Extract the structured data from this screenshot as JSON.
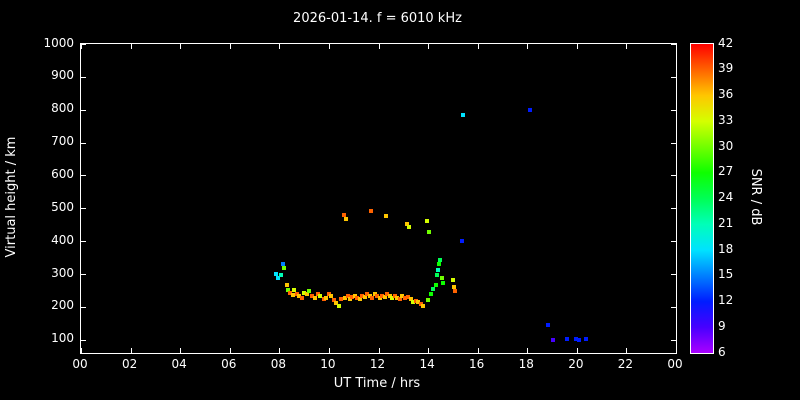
{
  "colors": {
    "background": "#000000",
    "foreground": "#ffffff"
  },
  "chart_data": {
    "type": "scatter",
    "title": "2026-01-14. f = 6010 kHz",
    "xlabel": "UT Time / hrs",
    "ylabel": "Virtual height / km",
    "xlim": [
      0,
      24
    ],
    "ylim": [
      60,
      1000
    ],
    "grid": false,
    "x_tick_values": [
      0,
      2,
      4,
      6,
      8,
      10,
      12,
      14,
      16,
      18,
      20,
      22,
      24
    ],
    "x_tick_labels": [
      "00",
      "02",
      "04",
      "06",
      "08",
      "10",
      "12",
      "14",
      "16",
      "18",
      "20",
      "22",
      "00"
    ],
    "y_tick_values": [
      100,
      200,
      300,
      400,
      500,
      600,
      700,
      800,
      900,
      1000
    ],
    "y_tick_labels": [
      "100",
      "200",
      "300",
      "400",
      "500",
      "600",
      "700",
      "800",
      "900",
      "1000"
    ],
    "colorbar": {
      "label": "SNR / dB",
      "min": 6,
      "max": 42,
      "tick_values": [
        6,
        9,
        12,
        15,
        18,
        21,
        24,
        27,
        30,
        33,
        36,
        39,
        42
      ],
      "tick_labels": [
        "6",
        "9",
        "12",
        "15",
        "18",
        "21",
        "24",
        "27",
        "30",
        "33",
        "36",
        "39",
        "42"
      ]
    },
    "series_note": "points are [ut_time_hrs, virtual_height_km, snr_db]",
    "points": [
      [
        7.85,
        300,
        18
      ],
      [
        7.95,
        288,
        18
      ],
      [
        8.05,
        296,
        21
      ],
      [
        8.15,
        332,
        15
      ],
      [
        8.2,
        318,
        30
      ],
      [
        8.3,
        268,
        36
      ],
      [
        8.35,
        252,
        30
      ],
      [
        8.45,
        244,
        39
      ],
      [
        8.55,
        236,
        36
      ],
      [
        8.6,
        252,
        33
      ],
      [
        8.7,
        240,
        39
      ],
      [
        8.8,
        232,
        36
      ],
      [
        8.9,
        228,
        39
      ],
      [
        9.0,
        244,
        33
      ],
      [
        9.1,
        238,
        36
      ],
      [
        9.2,
        248,
        30
      ],
      [
        9.3,
        234,
        39
      ],
      [
        9.45,
        228,
        36
      ],
      [
        9.55,
        238,
        39
      ],
      [
        9.65,
        232,
        33
      ],
      [
        9.8,
        224,
        39
      ],
      [
        9.9,
        228,
        36
      ],
      [
        10.0,
        238,
        39
      ],
      [
        10.1,
        232,
        36
      ],
      [
        10.2,
        222,
        39
      ],
      [
        10.3,
        212,
        36
      ],
      [
        10.4,
        204,
        33
      ],
      [
        10.5,
        224,
        39
      ],
      [
        10.6,
        480,
        39
      ],
      [
        10.7,
        468,
        36
      ],
      [
        10.65,
        228,
        36
      ],
      [
        10.75,
        234,
        39
      ],
      [
        10.85,
        224,
        36
      ],
      [
        10.95,
        230,
        39
      ],
      [
        11.05,
        234,
        36
      ],
      [
        11.15,
        228,
        39
      ],
      [
        11.25,
        224,
        36
      ],
      [
        11.35,
        234,
        39
      ],
      [
        11.45,
        230,
        36
      ],
      [
        11.55,
        240,
        39
      ],
      [
        11.7,
        492,
        39
      ],
      [
        11.65,
        234,
        36
      ],
      [
        11.75,
        228,
        39
      ],
      [
        11.85,
        238,
        36
      ],
      [
        11.95,
        232,
        39
      ],
      [
        12.05,
        228,
        36
      ],
      [
        12.15,
        234,
        39
      ],
      [
        12.25,
        230,
        36
      ],
      [
        12.3,
        478,
        36
      ],
      [
        12.35,
        238,
        39
      ],
      [
        12.45,
        234,
        36
      ],
      [
        12.55,
        228,
        33
      ],
      [
        12.65,
        234,
        39
      ],
      [
        12.75,
        228,
        36
      ],
      [
        12.85,
        224,
        39
      ],
      [
        12.95,
        234,
        36
      ],
      [
        13.05,
        228,
        39
      ],
      [
        13.15,
        452,
        36
      ],
      [
        13.25,
        444,
        33
      ],
      [
        13.2,
        230,
        39
      ],
      [
        13.3,
        224,
        36
      ],
      [
        13.4,
        214,
        33
      ],
      [
        13.5,
        218,
        39
      ],
      [
        13.6,
        214,
        36
      ],
      [
        13.7,
        208,
        39
      ],
      [
        13.8,
        204,
        36
      ],
      [
        13.95,
        462,
        33
      ],
      [
        14.05,
        428,
        30
      ],
      [
        14.0,
        222,
        30
      ],
      [
        14.1,
        238,
        27
      ],
      [
        14.2,
        254,
        24
      ],
      [
        14.3,
        268,
        27
      ],
      [
        14.35,
        298,
        24
      ],
      [
        14.4,
        314,
        21
      ],
      [
        14.45,
        330,
        27
      ],
      [
        14.5,
        344,
        24
      ],
      [
        14.55,
        288,
        30
      ],
      [
        14.6,
        274,
        27
      ],
      [
        15.0,
        282,
        33
      ],
      [
        15.05,
        262,
        36
      ],
      [
        15.1,
        250,
        39
      ],
      [
        15.35,
        400,
        12
      ],
      [
        15.4,
        785,
        18
      ],
      [
        18.1,
        800,
        12
      ],
      [
        18.85,
        145,
        12
      ],
      [
        19.05,
        100,
        9
      ],
      [
        19.6,
        103,
        12
      ],
      [
        19.95,
        104,
        12
      ],
      [
        20.1,
        100,
        12
      ],
      [
        20.35,
        104,
        12
      ]
    ]
  }
}
